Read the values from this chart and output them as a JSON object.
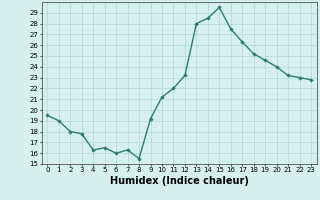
{
  "xlabel": "Humidex (Indice chaleur)",
  "ylabel": "",
  "x": [
    0,
    1,
    2,
    3,
    4,
    5,
    6,
    7,
    8,
    9,
    10,
    11,
    12,
    13,
    14,
    15,
    16,
    17,
    18,
    19,
    20,
    21,
    22,
    23
  ],
  "y": [
    19.5,
    19.0,
    18.0,
    17.8,
    16.3,
    16.5,
    16.0,
    16.3,
    15.5,
    19.2,
    21.2,
    22.0,
    23.2,
    28.0,
    28.5,
    29.5,
    27.5,
    26.3,
    25.2,
    24.6,
    24.0,
    23.2,
    23.0,
    22.8
  ],
  "line_color": "#2e7d6e",
  "marker": "D",
  "marker_size": 1.8,
  "line_width": 1.0,
  "ylim": [
    15,
    30
  ],
  "xlim": [
    -0.5,
    23.5
  ],
  "yticks": [
    15,
    16,
    17,
    18,
    19,
    20,
    21,
    22,
    23,
    24,
    25,
    26,
    27,
    28,
    29
  ],
  "xticks": [
    0,
    1,
    2,
    3,
    4,
    5,
    6,
    7,
    8,
    9,
    10,
    11,
    12,
    13,
    14,
    15,
    16,
    17,
    18,
    19,
    20,
    21,
    22,
    23
  ],
  "bg_color": "#d6f0ee",
  "grid_color": "#b0d8d5",
  "tick_fontsize": 5.0,
  "xlabel_fontsize": 7.0
}
